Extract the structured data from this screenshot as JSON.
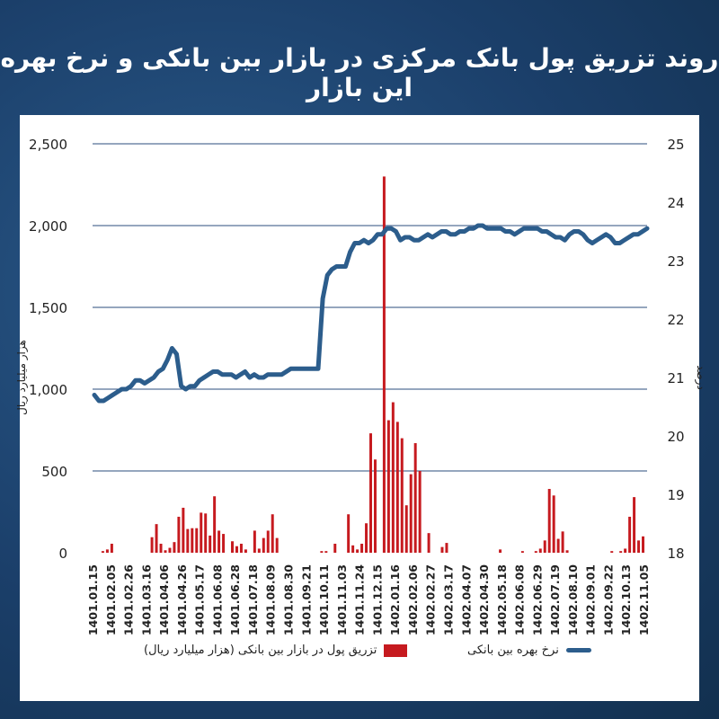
{
  "title": "روند تزریق پول بانک مرکزی در بازار بین بانکی و نرخ بهره این بازار",
  "chart_data": {
    "type": "bar+line",
    "left_axis": {
      "label": "هزار میلیارد ریال",
      "ticks": [
        "2,500",
        "2,000",
        "1,500",
        "1,000",
        "500",
        "0"
      ],
      "ylim": [
        0,
        2500
      ]
    },
    "right_axis": {
      "label": "درصد",
      "ticks": [
        "25",
        "24",
        "23",
        "22",
        "21",
        "20",
        "19",
        "18"
      ],
      "ylim": [
        18,
        25
      ]
    },
    "x_tick_labels": [
      "1401.01.15",
      "1401.02.05",
      "1401.02.26",
      "1401.03.16",
      "1401.04.06",
      "1401.04.26",
      "1401.05.17",
      "1401.06.08",
      "1401.06.28",
      "1401.07.18",
      "1401.08.09",
      "1401.08.30",
      "1401.09.21",
      "1401.10.11",
      "1401.11.03",
      "1401.11.24",
      "1401.12.15",
      "1402.01.16",
      "1402.02.06",
      "1402.02.27",
      "1402.03.17",
      "1402.04.07",
      "1402.04.30",
      "1402.05.18",
      "1402.06.08",
      "1402.06.29",
      "1402.07.19",
      "1402.08.10",
      "1402.09.01",
      "1402.09.22",
      "1402.10.13",
      "1402.11.05"
    ],
    "series": [
      {
        "name": "تزریق پول در بازار بین بانکی (هزار میلیارد ریال)",
        "type": "bar",
        "color": "#c61a1f",
        "values": [
          0,
          10,
          20,
          55,
          0,
          0,
          0,
          0,
          0,
          0,
          0,
          0,
          95,
          175,
          55,
          15,
          30,
          65,
          220,
          275,
          145,
          150,
          150,
          245,
          240,
          105,
          345,
          135,
          115,
          0,
          70,
          40,
          55,
          20,
          0,
          135,
          25,
          90,
          135,
          235,
          90,
          0,
          0,
          0,
          0,
          0,
          0,
          0,
          0,
          0,
          10,
          10,
          0,
          55,
          0,
          0,
          235,
          45,
          20,
          55,
          180,
          730,
          570,
          0,
          2300,
          810,
          920,
          800,
          700,
          290,
          480,
          670,
          500,
          0,
          120,
          0,
          0,
          35,
          60,
          0,
          0,
          0,
          0,
          0,
          0,
          0,
          0,
          0,
          0,
          0,
          20,
          0,
          0,
          0,
          0,
          10,
          0,
          0,
          10,
          25,
          75,
          390,
          350,
          85,
          130,
          15,
          0,
          0,
          0,
          0,
          0,
          0,
          0,
          0,
          0,
          10,
          0,
          10,
          25,
          220,
          340,
          75,
          100
        ]
      },
      {
        "name": "نرخ بهره بین بانکی",
        "type": "line",
        "color": "#2c5d8c",
        "values": [
          20.7,
          20.6,
          20.6,
          20.65,
          20.7,
          20.75,
          20.8,
          20.8,
          20.85,
          20.95,
          20.95,
          20.9,
          20.95,
          21.0,
          21.1,
          21.15,
          21.3,
          21.5,
          21.4,
          20.85,
          20.8,
          20.85,
          20.85,
          20.95,
          21.0,
          21.05,
          21.1,
          21.1,
          21.05,
          21.05,
          21.05,
          21.0,
          21.05,
          21.1,
          21.0,
          21.05,
          21.0,
          21.0,
          21.05,
          21.05,
          21.05,
          21.05,
          21.1,
          21.15,
          21.15,
          21.15,
          21.15,
          21.15,
          21.15,
          21.15,
          22.35,
          22.75,
          22.85,
          22.9,
          22.9,
          22.9,
          23.15,
          23.3,
          23.3,
          23.35,
          23.3,
          23.35,
          23.45,
          23.45,
          23.55,
          23.55,
          23.5,
          23.35,
          23.4,
          23.4,
          23.35,
          23.35,
          23.4,
          23.45,
          23.4,
          23.45,
          23.5,
          23.5,
          23.45,
          23.45,
          23.5,
          23.5,
          23.55,
          23.55,
          23.6,
          23.6,
          23.55,
          23.55,
          23.55,
          23.55,
          23.5,
          23.5,
          23.45,
          23.5,
          23.55,
          23.55,
          23.55,
          23.55,
          23.5,
          23.5,
          23.45,
          23.4,
          23.4,
          23.35,
          23.45,
          23.5,
          23.5,
          23.45,
          23.35,
          23.3,
          23.35,
          23.4,
          23.45,
          23.4,
          23.3,
          23.3,
          23.35,
          23.4,
          23.45,
          23.45,
          23.5,
          23.55
        ]
      }
    ],
    "grid": true,
    "legend_position": "bottom"
  }
}
